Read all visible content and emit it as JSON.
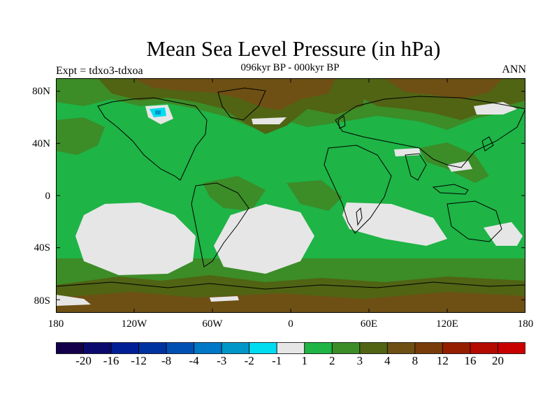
{
  "title": "Mean Sea Level Pressure (in hPa)",
  "subtitle": "096kyr BP - 000kyr BP",
  "left_label": "Expt = tdxo3-tdxoa",
  "right_label": "ANN",
  "lat_ticks": [
    "80N",
    "40N",
    "0",
    "40S",
    "80S"
  ],
  "lon_ticks": [
    "180",
    "120W",
    "60W",
    "0",
    "60E",
    "120E",
    "180"
  ],
  "colorbar": {
    "labels": [
      "-20",
      "-16",
      "-12",
      "-8",
      "-4",
      "-3",
      "-2",
      "-1",
      "1",
      "2",
      "3",
      "4",
      "8",
      "12",
      "16",
      "20"
    ],
    "colors": [
      "#14004a",
      "#0a0a6e",
      "#001e96",
      "#0032a0",
      "#0050b4",
      "#0078c8",
      "#0096c8",
      "#00dcf0",
      "#e6e6e6",
      "#1eb446",
      "#3c8c28",
      "#506414",
      "#6e5014",
      "#783c0a",
      "#961e00",
      "#b40a00",
      "#c80000"
    ]
  },
  "palette": {
    "light_gray": "#e6e6e6",
    "green": "#1eb446",
    "mid_green": "#3c8c28",
    "olive": "#506414",
    "brown": "#6e5014",
    "dark_brown": "#783c0a",
    "cyan": "#00dcf0",
    "light_blue": "#0096c8",
    "coast": "#000000"
  }
}
